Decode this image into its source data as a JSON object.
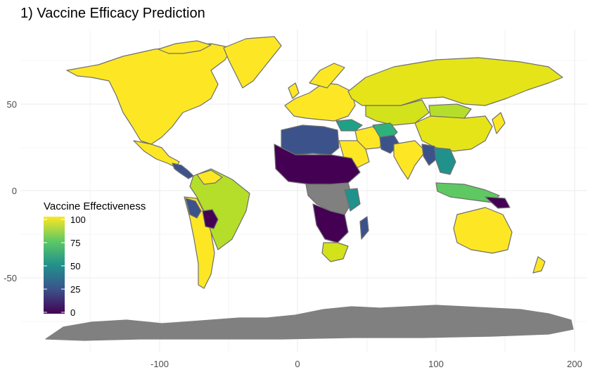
{
  "title": "1) Vaccine Efficacy Prediction",
  "axes": {
    "x_ticks": [
      "-100",
      "0",
      "100",
      "200"
    ],
    "y_ticks": [
      "50",
      "0",
      "-50"
    ]
  },
  "legend": {
    "title": "Vaccine Effectiveness",
    "ticks": [
      "100",
      "75",
      "50",
      "25",
      "0"
    ],
    "position": "left",
    "colorscale": [
      "#fde725",
      "#5ec962",
      "#21918c",
      "#3b528b",
      "#440154"
    ]
  },
  "colors": {
    "no_data": "#808080",
    "border": "#6f6f6f",
    "grid": "#ebebeb"
  }
}
